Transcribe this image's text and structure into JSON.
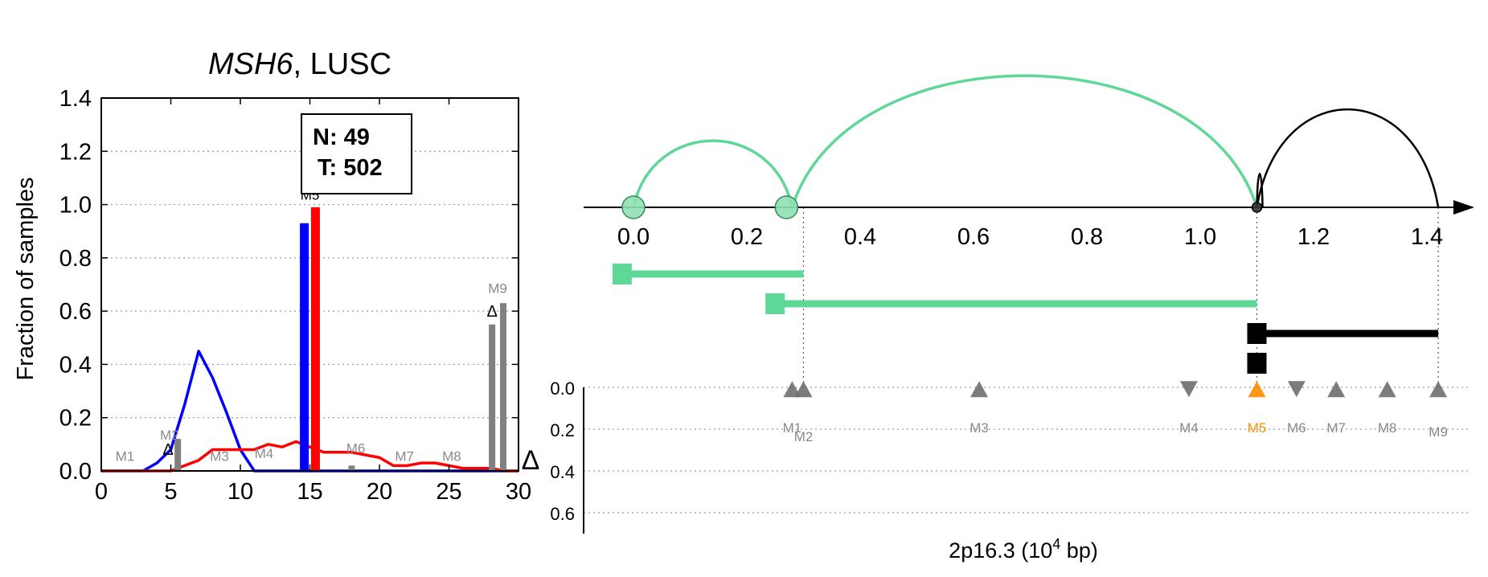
{
  "colors": {
    "normal": "#0000ff",
    "tumor": "#ff0000",
    "gray_bar": "#808080",
    "green": "#5fd797",
    "green_fill": "#8fe0b4",
    "black": "#000000",
    "highlight": "#ff8c00",
    "marker_gray": "#6e6e6e",
    "label_gray": "#8a8a8a"
  },
  "chart_data": [
    {
      "type": "bar",
      "title_italic": "MSH6",
      "title_rest": ", LUSC",
      "ylabel": "Fraction of samples",
      "xlim": [
        0,
        30
      ],
      "ylim": [
        0,
        1.4
      ],
      "xticks": [
        "0",
        "5",
        "10",
        "15",
        "20",
        "25",
        "30"
      ],
      "xtick_values": [
        0,
        5,
        10,
        15,
        20,
        25,
        30
      ],
      "yticks": [
        "0.0",
        "0.2",
        "0.4",
        "0.6",
        "0.8",
        "1.0",
        "1.2",
        "1.4"
      ],
      "ytick_values": [
        0,
        0.2,
        0.4,
        0.6,
        0.8,
        1.0,
        1.2,
        1.4
      ],
      "grid": "horizontal dotted",
      "count_box": {
        "n_line": "N: 49",
        "t_line": "T: 502"
      },
      "bars": [
        {
          "x": 14.6,
          "value": 0.93,
          "series": "normal"
        },
        {
          "x": 15.4,
          "value": 0.99,
          "series": "tumor"
        },
        {
          "x": 5.5,
          "value": 0.12,
          "series": "gray"
        },
        {
          "x": 18.0,
          "value": 0.02,
          "series": "gray"
        },
        {
          "x": 28.1,
          "value": 0.55,
          "series": "gray"
        },
        {
          "x": 28.9,
          "value": 0.63,
          "series": "gray"
        }
      ],
      "lines": [
        {
          "series": "normal",
          "x": [
            0,
            3,
            4,
            5,
            6,
            7,
            8,
            9,
            10,
            11,
            12,
            15,
            20,
            25,
            30
          ],
          "y": [
            0,
            0,
            0.03,
            0.08,
            0.25,
            0.45,
            0.35,
            0.22,
            0.08,
            0,
            0,
            0,
            0,
            0,
            0
          ]
        },
        {
          "series": "tumor",
          "x": [
            0,
            3,
            4,
            5,
            6,
            7,
            8,
            9,
            10,
            11,
            12,
            13,
            14,
            15,
            16,
            17,
            18,
            19,
            20,
            21,
            22,
            23,
            24,
            25,
            26,
            27,
            28,
            29,
            30
          ],
          "y": [
            0,
            0,
            0,
            0,
            0.02,
            0.04,
            0.08,
            0.08,
            0.08,
            0.08,
            0.1,
            0.09,
            0.11,
            0.09,
            0.07,
            0.07,
            0.07,
            0.06,
            0.05,
            0.02,
            0.02,
            0.03,
            0.03,
            0.02,
            0.01,
            0.01,
            0.01,
            0,
            0
          ]
        }
      ],
      "markers": [
        {
          "label": "M1",
          "x": 1.7,
          "y": 0.02
        },
        {
          "label": "M2",
          "x": 4.9,
          "y": 0.1
        },
        {
          "label": "M3",
          "x": 8.5,
          "y": 0.02
        },
        {
          "label": "M4",
          "x": 11.7,
          "y": 0.03
        },
        {
          "label": "M5",
          "x": 15.0,
          "y": 1.0
        },
        {
          "label": "M6",
          "x": 18.3,
          "y": 0.05
        },
        {
          "label": "M7",
          "x": 21.8,
          "y": 0.02
        },
        {
          "label": "M8",
          "x": 25.2,
          "y": 0.02
        },
        {
          "label": "M9",
          "x": 28.5,
          "y": 0.65
        }
      ],
      "delta_marks": [
        {
          "label": "Δ",
          "x": 4.8,
          "y": 0.06
        },
        {
          "label": "Δ",
          "x": 28.1,
          "y": 0.58
        }
      ]
    },
    {
      "type": "scatter",
      "xlabel_base": "2p16.3 (10",
      "xlabel_sup": "4",
      "xlabel_tail": " bp)",
      "ylabel": "Δ",
      "xlim": [
        -0.08,
        1.5
      ],
      "xticks": [
        "0.0",
        "0.2",
        "0.4",
        "0.6",
        "0.8",
        "1.0",
        "1.2",
        "1.4"
      ],
      "xtick_values": [
        0,
        0.2,
        0.4,
        0.6,
        0.8,
        1.0,
        1.2,
        1.4
      ],
      "yticks": [
        "0.0",
        "0.2",
        "0.4",
        "0.6"
      ],
      "ytick_values": [
        0,
        0.2,
        0.4,
        0.6
      ],
      "arcs": [
        {
          "from": 0.0,
          "to": 0.28,
          "height": 0.85,
          "color": "green"
        },
        {
          "from": 0.28,
          "to": 1.1,
          "height": 1.68,
          "color": "green"
        },
        {
          "from": 1.1,
          "to": 1.42,
          "height": 1.25,
          "color": "black"
        },
        {
          "from": 1.1,
          "to": 1.11,
          "height": 0.43,
          "color": "black"
        }
      ],
      "nodes": [
        {
          "x": 0.0,
          "color": "green"
        },
        {
          "x": 0.27,
          "color": "green"
        },
        {
          "x": 1.1,
          "color": "black"
        }
      ],
      "transcripts": [
        {
          "start": -0.02,
          "end": 0.3,
          "row": 0,
          "color": "green",
          "box": "box_left"
        },
        {
          "start": 0.25,
          "end": 1.1,
          "row": 1,
          "color": "green",
          "box": "box_left"
        },
        {
          "start": 1.1,
          "end": 1.42,
          "row": 2,
          "color": "black",
          "box": "box_left"
        },
        {
          "start": 1.1,
          "end": 1.11,
          "row": 3,
          "color": "black",
          "box": "box_left"
        }
      ],
      "guides": [
        0.3,
        1.1,
        1.42
      ],
      "markers": [
        {
          "label": "M1",
          "x": 0.28,
          "delta": 0.02,
          "dir": "up",
          "highlight": false
        },
        {
          "label": "M2",
          "x": 0.3,
          "delta": 0.02,
          "dir": "up",
          "highlight": false
        },
        {
          "label": "M3",
          "x": 0.61,
          "delta": 0.02,
          "dir": "up",
          "highlight": false
        },
        {
          "label": "M4",
          "x": 0.98,
          "delta": 0.02,
          "dir": "down",
          "highlight": false
        },
        {
          "label": "M5",
          "x": 1.1,
          "delta": 0.02,
          "dir": "up",
          "highlight": true
        },
        {
          "label": "M6",
          "x": 1.17,
          "delta": 0.02,
          "dir": "down",
          "highlight": false
        },
        {
          "label": "M7",
          "x": 1.24,
          "delta": 0.02,
          "dir": "up",
          "highlight": false
        },
        {
          "label": "M8",
          "x": 1.33,
          "delta": 0.02,
          "dir": "up",
          "highlight": false
        },
        {
          "label": "M9",
          "x": 1.42,
          "delta": 0.02,
          "dir": "up",
          "highlight": false
        }
      ]
    }
  ]
}
